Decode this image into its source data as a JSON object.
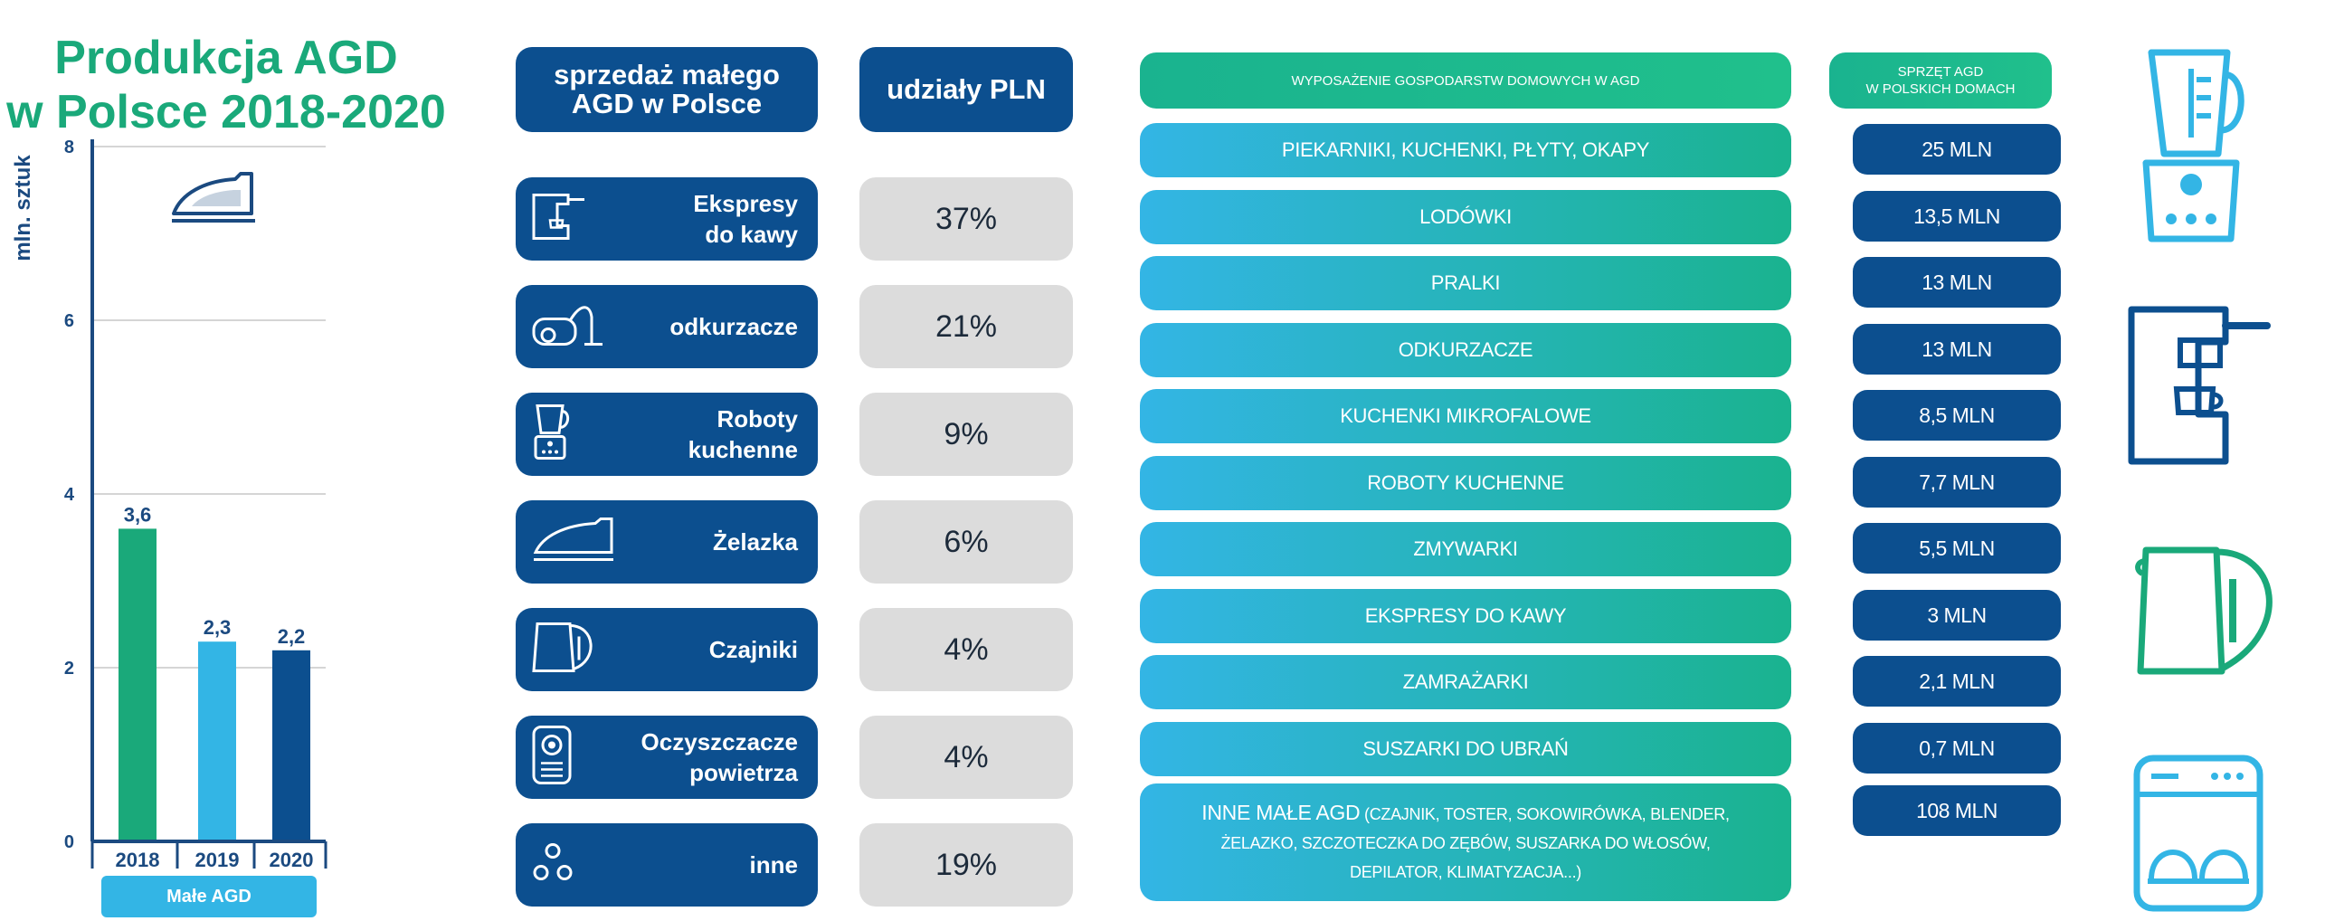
{
  "colors": {
    "green": "#1aa97a",
    "blue_light": "#33b5e5",
    "navy": "#0c4f8f",
    "grey": "#dcdcdc"
  },
  "chart": {
    "title_line1": "Produkcja AGD",
    "title_line2": "w Polsce 2018-2020",
    "legend": "Małe AGD"
  },
  "chart_data": {
    "type": "bar",
    "categories": [
      "2018",
      "2019",
      "2020"
    ],
    "values": [
      3.6,
      2.3,
      2.2
    ],
    "value_labels": [
      "3,6",
      "2,3",
      "2,2"
    ],
    "bar_colors": [
      "#1aa97a",
      "#33b5e5",
      "#0c4f8f"
    ],
    "title": "Produkcja AGD w Polsce 2018-2020",
    "ylabel": "mln. sztuk",
    "ylim": [
      0,
      8
    ],
    "yticks": [
      0,
      2,
      4,
      6,
      8
    ],
    "legend": [
      "Małe AGD"
    ],
    "grid": true
  },
  "sales": {
    "header": "sprzedaż małego AGD w Polsce",
    "share_header": "udziały PLN",
    "rows": [
      {
        "label": "Ekspresy\ndo kawy",
        "share": "37%",
        "icon": "coffee-machine-icon"
      },
      {
        "label": "odkurzacze",
        "share": "21%",
        "icon": "vacuum-cleaner-icon"
      },
      {
        "label": "Roboty\nkuchenne",
        "share": "9%",
        "icon": "food-processor-icon"
      },
      {
        "label": "Żelazka",
        "share": "6%",
        "icon": "iron-icon"
      },
      {
        "label": "Czajniki",
        "share": "4%",
        "icon": "kettle-icon"
      },
      {
        "label": "Oczyszczacze\npowietrza",
        "share": "4%",
        "icon": "air-purifier-icon"
      },
      {
        "label": "inne",
        "share": "19%",
        "icon": "circles-icon"
      }
    ]
  },
  "equipment": {
    "header": "WYPOSAŻENIE GOSPODARSTW DOMOWYCH W AGD",
    "value_header_line1": "SPRZĘT AGD",
    "value_header_line2": "W POLSKICH DOMACH",
    "rows": [
      {
        "label": "PIEKARNIKI, KUCHENKI, PŁYTY, OKAPY",
        "value": "25 MLN"
      },
      {
        "label": "LODÓWKI",
        "value": "13,5 MLN"
      },
      {
        "label": "PRALKI",
        "value": "13 MLN"
      },
      {
        "label": "ODKURZACZE",
        "value": "13 MLN"
      },
      {
        "label": "KUCHENKI MIKROFALOWE",
        "value": "8,5 MLN"
      },
      {
        "label": "ROBOTY KUCHENNE",
        "value": "7,7 MLN"
      },
      {
        "label": "ZMYWARKI",
        "value": "5,5 MLN"
      },
      {
        "label": "EKSPRESY DO KAWY",
        "value": "3 MLN"
      },
      {
        "label": "ZAMRAŻARKI",
        "value": "2,1 MLN"
      },
      {
        "label": "SUSZARKI DO UBRAŃ",
        "value": "0,7 MLN"
      }
    ],
    "last_row": {
      "label_main": "INNE MAŁE AGD",
      "label_line1_rest": "(CZAJNIK, TOSTER, SOKOWIRÓWKA, BLENDER,",
      "label_line2": "ŻELAZKO, SZCZOTECZKA DO ZĘBÓW, SUSZARKA DO WŁOSÓW,",
      "label_line3": "DEPILATOR, KLIMATYZACJA...)",
      "value": "108 MLN"
    }
  },
  "side_icons": [
    "blender-icon",
    "coffee-maker-icon",
    "electric-kettle-icon",
    "dishwasher-icon"
  ]
}
